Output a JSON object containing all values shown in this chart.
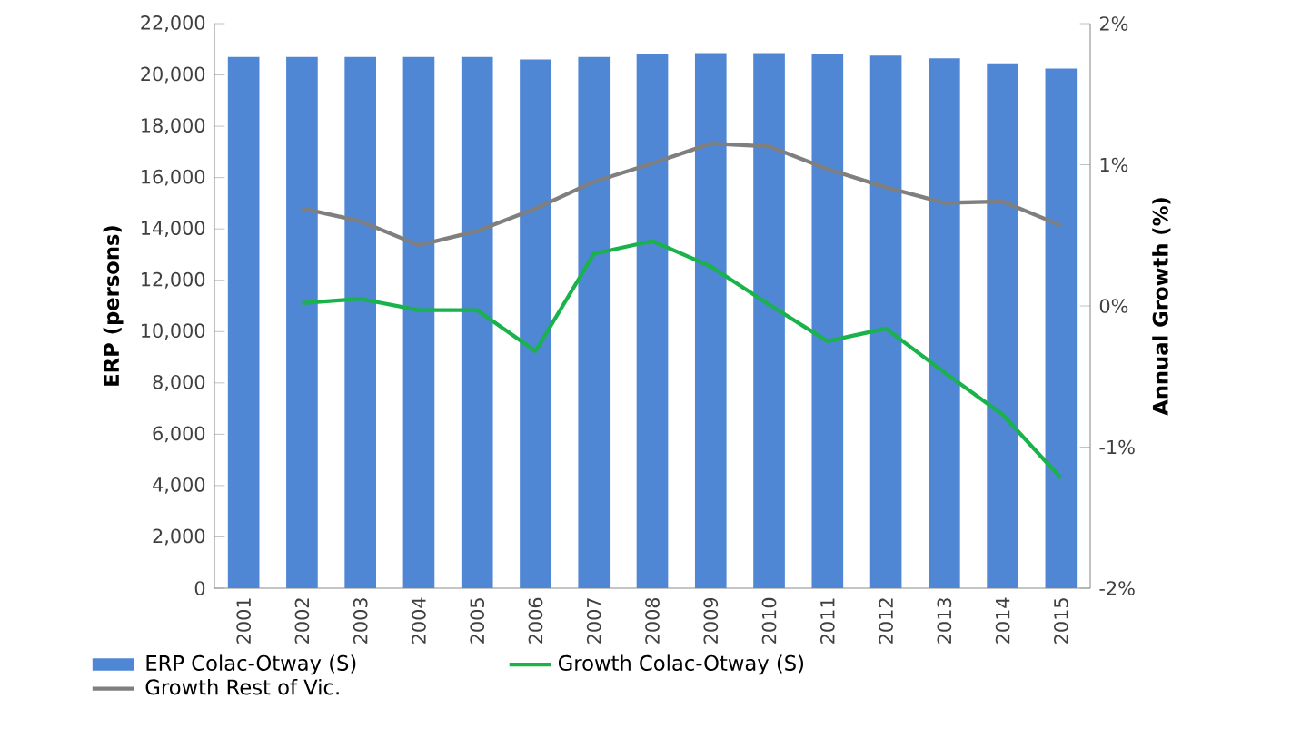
{
  "chart_data": {
    "type": "bar",
    "xlabel": null,
    "ylabel": "ERP (persons)",
    "y2label": "Annual Growth (%)",
    "categories": [
      "2001",
      "2002",
      "2003",
      "2004",
      "2005",
      "2006",
      "2007",
      "2008",
      "2009",
      "2010",
      "2011",
      "2012",
      "2013",
      "2014",
      "2015"
    ],
    "series": [
      {
        "name": "ERP Colac-Otway (S)",
        "color": "#4f87d4",
        "values": [
          20700,
          20700,
          20700,
          20700,
          20700,
          20600,
          20700,
          20800,
          20850,
          20850,
          20800,
          20750,
          20650,
          20450,
          20250
        ]
      },
      {
        "name": "Growth Colac-Otway (S)",
        "type": "line",
        "axis": "y2",
        "color": "#19b24b",
        "values": [
          null,
          0.02,
          0.05,
          -0.03,
          -0.03,
          -0.32,
          0.37,
          0.46,
          0.28,
          0.01,
          -0.25,
          -0.16,
          -0.47,
          -0.77,
          -1.22
        ]
      },
      {
        "name": "Growth Rest of Vic.",
        "type": "line",
        "axis": "y2",
        "color": "#7f7f7f",
        "values": [
          null,
          0.69,
          0.6,
          0.43,
          0.53,
          0.69,
          0.88,
          1.01,
          1.15,
          1.13,
          0.97,
          0.84,
          0.73,
          0.74,
          0.57
        ]
      }
    ],
    "ylim": [
      0,
      22000
    ],
    "yticks": [
      {
        "value": 0,
        "label": "0"
      },
      {
        "value": 2000,
        "label": "2,000"
      },
      {
        "value": 4000,
        "label": "4,000"
      },
      {
        "value": 6000,
        "label": "6,000"
      },
      {
        "value": 8000,
        "label": "8,000"
      },
      {
        "value": 10000,
        "label": "10,000"
      },
      {
        "value": 12000,
        "label": "12,000"
      },
      {
        "value": 14000,
        "label": "14,000"
      },
      {
        "value": 16000,
        "label": "16,000"
      },
      {
        "value": 18000,
        "label": "18,000"
      },
      {
        "value": 20000,
        "label": "20,000"
      },
      {
        "value": 22000,
        "label": "22,000"
      }
    ],
    "y2lim": [
      -2,
      2
    ],
    "y2ticks": [
      {
        "value": -2,
        "label": "-2%"
      },
      {
        "value": -1,
        "label": "-1%"
      },
      {
        "value": 0,
        "label": "0%"
      },
      {
        "value": 1,
        "label": "1%"
      },
      {
        "value": 2,
        "label": "2%"
      }
    ],
    "legend": "bottom",
    "grid": false,
    "marker": "none",
    "line_style": "solid"
  }
}
